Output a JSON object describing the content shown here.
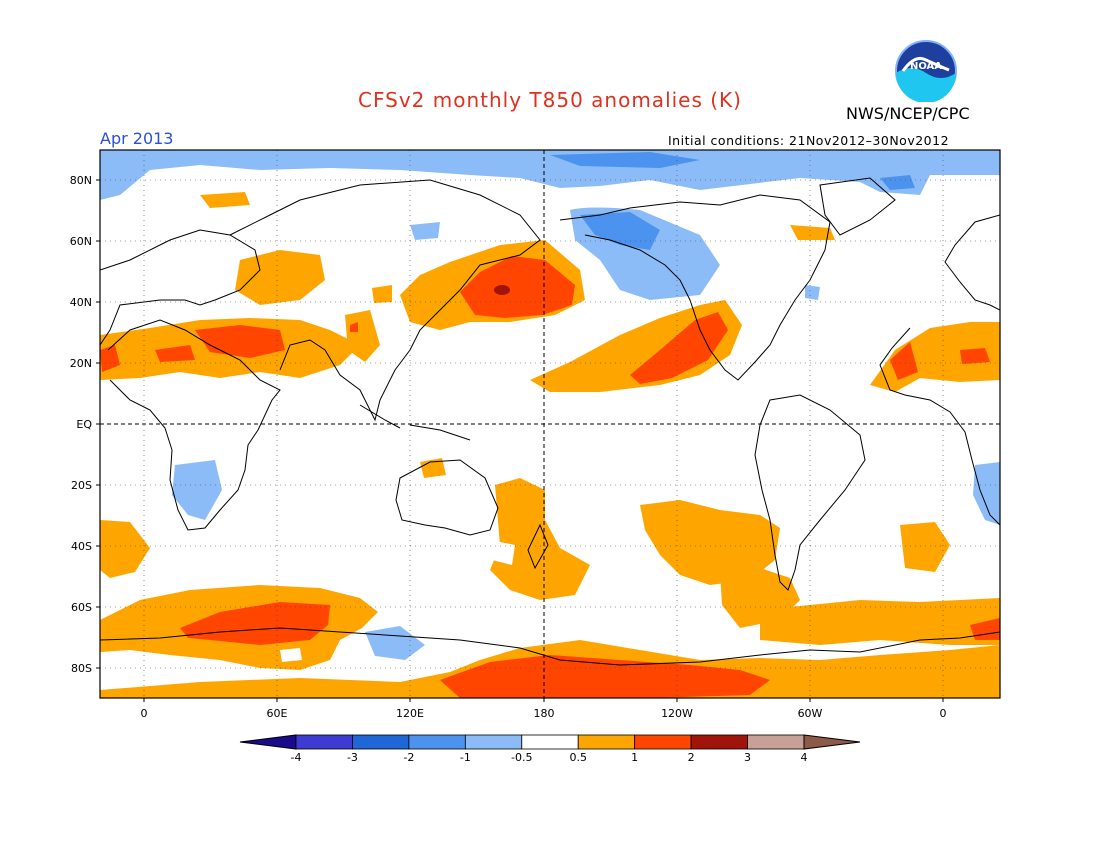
{
  "title": "CFSv2 monthly T850 anomalies (K)",
  "agency": "NWS/NCEP/CPC",
  "month": "Apr 2013",
  "initial_conditions": "Initial conditions: 21Nov2012–30Nov2012",
  "logo_text": "NOAA",
  "lat_labels": [
    "80N",
    "60N",
    "40N",
    "20N",
    "EQ",
    "20S",
    "40S",
    "60S",
    "80S"
  ],
  "lon_labels": [
    "0",
    "60E",
    "120E",
    "180",
    "120W",
    "60W",
    "0"
  ],
  "colorbar": {
    "labels": [
      "-4",
      "-3",
      "-2",
      "-1",
      "-0.5",
      "0.5",
      "1",
      "2",
      "3",
      "4"
    ],
    "colors": [
      "#1a0a8c",
      "#3c3cd2",
      "#1f66d6",
      "#4b93ee",
      "#8cbcf7",
      "#ffffff",
      "#ffa500",
      "#ff4500",
      "#a0140a",
      "#c8a096",
      "#8c5a46"
    ]
  }
}
